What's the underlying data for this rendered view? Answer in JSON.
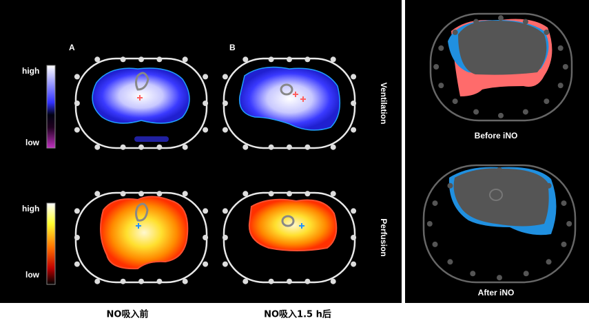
{
  "panel_left": {
    "label_a": "A",
    "label_b": "B",
    "rows": [
      {
        "title": "Ventilation",
        "scale_high": "high",
        "scale_low": "low"
      },
      {
        "title": "Perfusion",
        "scale_high": "high",
        "scale_low": "low"
      }
    ]
  },
  "panel_right": {
    "captions": [
      "Before iNO",
      "After iNO"
    ]
  },
  "footer": {
    "captions": [
      "NO吸入前",
      "NO吸入1.5 h后"
    ]
  }
}
